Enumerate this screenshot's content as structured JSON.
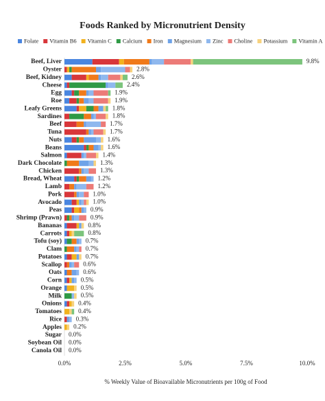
{
  "chart_data": {
    "type": "stacked-bar-horizontal",
    "title": "Foods Ranked by Micronutrient Density",
    "x_label": "% Weekly Value of Bioavailable Micronutrients per 100g of Food",
    "categories": [
      "Beef, Liver",
      "Oyster",
      "Beef, Kidney",
      "Cheese",
      "Egg",
      "Roe",
      "Leafy Greens",
      "Sardines",
      "Beef",
      "Tuna",
      "Nuts",
      "Beans",
      "Salmon",
      "Dark Chocolate",
      "Chicken",
      "Bread, Wheat",
      "Lamb",
      "Pork",
      "Avocado",
      "Peas",
      "Shrimp (Prawn)",
      "Bananas",
      "Carrots",
      "Tofu (soy)",
      "Clam",
      "Potatoes",
      "Scallop",
      "Oats",
      "Corn",
      "Orange",
      "Milk",
      "Onions",
      "Tomatoes",
      "Rice",
      "Apples",
      "Sugar",
      "Soybean Oil",
      "Canola Oil"
    ],
    "series": [
      {
        "name": "Folate",
        "color": "#4a86e0",
        "values": [
          1.15,
          0,
          0.3,
          0.1,
          0.3,
          0.2,
          0.5,
          0,
          0,
          0,
          0.3,
          0.8,
          0.1,
          0,
          0,
          0.4,
          0,
          0,
          0.3,
          0.3,
          0,
          0.1,
          0.1,
          0.1,
          0,
          0.1,
          0,
          0.1,
          0.1,
          0.1,
          0,
          0.1,
          0,
          0,
          0,
          0,
          0,
          0
        ]
      },
      {
        "name": "Vitamin B6",
        "color": "#d8363a",
        "values": [
          1.1,
          0.1,
          0.6,
          0.1,
          0.1,
          0.3,
          0.1,
          0.2,
          0.5,
          0.9,
          0.2,
          0.1,
          0.6,
          0,
          0.6,
          0.1,
          0.2,
          0.4,
          0.2,
          0.1,
          0.1,
          0.4,
          0.1,
          0,
          0,
          0.2,
          0.1,
          0,
          0.1,
          0,
          0,
          0.1,
          0,
          0.1,
          0,
          0,
          0,
          0
        ]
      },
      {
        "name": "Vitamin C",
        "color": "#f2b21e",
        "values": [
          0.2,
          0.1,
          0.1,
          0,
          0,
          0,
          0.3,
          0,
          0,
          0,
          0,
          0,
          0,
          0,
          0,
          0,
          0,
          0,
          0.1,
          0.2,
          0,
          0.1,
          0.1,
          0,
          0,
          0.2,
          0,
          0,
          0.1,
          0.3,
          0,
          0.1,
          0.2,
          0,
          0.1,
          0,
          0,
          0
        ]
      },
      {
        "name": "Calcium",
        "color": "#2f9a46",
        "values": [
          0,
          0.1,
          0,
          1.5,
          0.2,
          0.1,
          0.3,
          0.6,
          0,
          0,
          0.1,
          0.1,
          0,
          0.1,
          0,
          0.1,
          0,
          0,
          0,
          0,
          0.1,
          0,
          0,
          0.2,
          0.1,
          0,
          0,
          0,
          0,
          0,
          0.3,
          0,
          0,
          0,
          0,
          0,
          0,
          0
        ]
      },
      {
        "name": "Iron",
        "color": "#f07a1a",
        "values": [
          1.05,
          1.0,
          0.4,
          0,
          0.3,
          0.2,
          0.2,
          0.3,
          0.3,
          0.1,
          0.2,
          0.2,
          0,
          0.5,
          0.1,
          0.3,
          0.2,
          0.1,
          0,
          0.1,
          0.1,
          0,
          0,
          0.2,
          0.3,
          0,
          0.1,
          0.2,
          0,
          0,
          0,
          0,
          0,
          0,
          0,
          0,
          0,
          0
        ]
      },
      {
        "name": "Magnesium",
        "color": "#6fa3e8",
        "values": [
          0.1,
          0.2,
          0.1,
          0.1,
          0.1,
          0.2,
          0.2,
          0.1,
          0.1,
          0.1,
          0.5,
          0.2,
          0.1,
          0.4,
          0.1,
          0.2,
          0.1,
          0.1,
          0.1,
          0.1,
          0.1,
          0.1,
          0,
          0.1,
          0.1,
          0.1,
          0.1,
          0.2,
          0.1,
          0,
          0,
          0,
          0,
          0.1,
          0,
          0,
          0,
          0
        ]
      },
      {
        "name": "Zinc",
        "color": "#8fb8ee",
        "values": [
          0.5,
          1.0,
          0.3,
          0.3,
          0.2,
          0.2,
          0,
          0.1,
          0.6,
          0.1,
          0.2,
          0.1,
          0.1,
          0.2,
          0.2,
          0.1,
          0.4,
          0.2,
          0.1,
          0.1,
          0.2,
          0,
          0,
          0.1,
          0.1,
          0,
          0.1,
          0.1,
          0.1,
          0,
          0.1,
          0,
          0,
          0.1,
          0,
          0,
          0,
          0
        ]
      },
      {
        "name": "Choline",
        "color": "#ec7b78",
        "values": [
          1.1,
          0.2,
          0.5,
          0,
          0.6,
          0.6,
          0,
          0.4,
          0.2,
          0.4,
          0,
          0,
          0.4,
          0,
          0.3,
          0,
          0.3,
          0.2,
          0.1,
          0,
          0.3,
          0,
          0,
          0,
          0.1,
          0,
          0.2,
          0,
          0,
          0,
          0,
          0,
          0,
          0,
          0,
          0,
          0,
          0
        ]
      },
      {
        "name": "Potassium",
        "color": "#f7d27e",
        "values": [
          0.1,
          0.1,
          0.1,
          0,
          0,
          0.1,
          0.1,
          0.1,
          0,
          0.1,
          0.1,
          0.1,
          0.1,
          0.1,
          0,
          0,
          0,
          0,
          0.1,
          0,
          0,
          0.1,
          0.1,
          0,
          0,
          0.1,
          0,
          0,
          0,
          0.1,
          0.1,
          0.1,
          0.1,
          0,
          0.1,
          0,
          0,
          0
        ]
      },
      {
        "name": "Vitamin A",
        "color": "#7cc47c",
        "values": [
          4.5,
          0,
          0.2,
          0.3,
          0.1,
          0,
          0.1,
          0,
          0,
          0,
          0,
          0,
          0,
          0,
          0,
          0,
          0,
          0,
          0,
          0,
          0,
          0,
          0.4,
          0,
          0,
          0,
          0,
          0,
          0,
          0,
          0,
          0,
          0.1,
          0,
          0,
          0,
          0,
          0
        ]
      }
    ],
    "totals": [
      9.8,
      2.8,
      2.6,
      2.4,
      1.9,
      1.9,
      1.8,
      1.8,
      1.7,
      1.7,
      1.6,
      1.6,
      1.4,
      1.3,
      1.3,
      1.2,
      1.2,
      1.0,
      1.0,
      0.9,
      0.9,
      0.8,
      0.8,
      0.7,
      0.7,
      0.7,
      0.6,
      0.6,
      0.5,
      0.5,
      0.5,
      0.4,
      0.4,
      0.3,
      0.2,
      0.0,
      0.0,
      0.0
    ],
    "total_labels": [
      "9.8%",
      "2.8%",
      "2.6%",
      "2.4%",
      "1.9%",
      "1.9%",
      "1.8%",
      "1.8%",
      "1.7%",
      "1.7%",
      "1.6%",
      "1.6%",
      "1.4%",
      "1.3%",
      "1.3%",
      "1.2%",
      "1.2%",
      "1.0%",
      "1.0%",
      "0.9%",
      "0.9%",
      "0.8%",
      "0.8%",
      "0.7%",
      "0.7%",
      "0.7%",
      "0.6%",
      "0.6%",
      "0.5%",
      "0.5%",
      "0.5%",
      "0.4%",
      "0.4%",
      "0.3%",
      "0.2%",
      "0.0%",
      "0.0%",
      "0.0%"
    ],
    "xlim": [
      0,
      10
    ],
    "xticks": [
      {
        "value": 0,
        "label": "0.0%"
      },
      {
        "value": 2.5,
        "label": "2.5%"
      },
      {
        "value": 5,
        "label": "5.0%"
      },
      {
        "value": 7.5,
        "label": "7.5%"
      },
      {
        "value": 10,
        "label": "10.0%"
      }
    ],
    "legend": "top"
  }
}
